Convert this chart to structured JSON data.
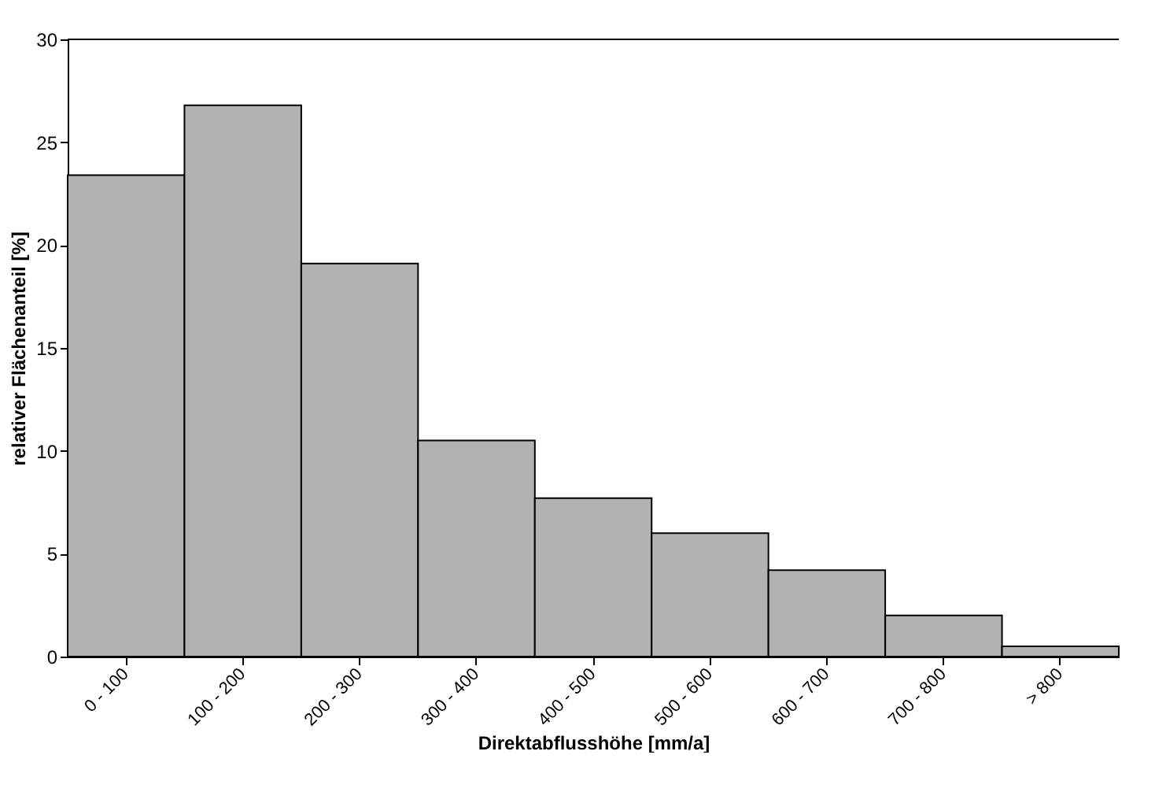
{
  "chart_data": {
    "type": "bar",
    "categories": [
      "0 - 100",
      "100 - 200",
      "200 - 300",
      "300 - 400",
      "400 - 500",
      "500 - 600",
      "600 - 700",
      "700 - 800",
      "> 800"
    ],
    "values": [
      23.4,
      26.8,
      19.1,
      10.5,
      7.7,
      6.0,
      4.2,
      2.0,
      0.5
    ],
    "color": "#b2b2b2",
    "xlabel": "Direktabflusshöhe [mm/a]",
    "ylabel": "relativer Flächenanteil [%]",
    "ylim": [
      0,
      30
    ],
    "yticks": [
      0,
      5,
      10,
      15,
      20,
      25,
      30
    ],
    "grid": false
  }
}
